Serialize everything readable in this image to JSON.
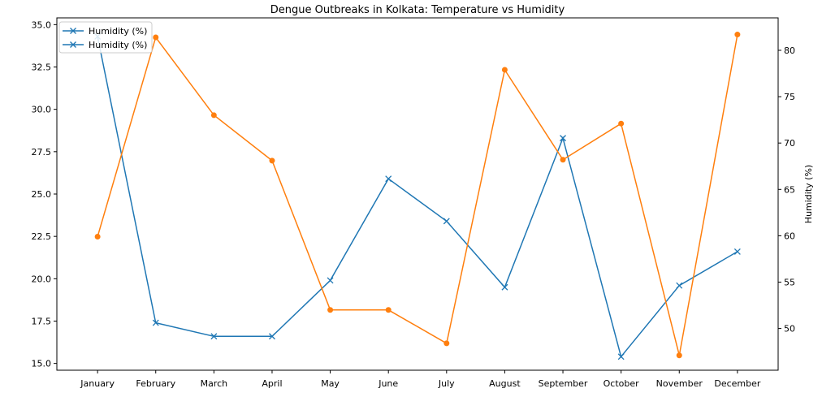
{
  "chart_data": {
    "type": "line",
    "title": "Dengue Outbreaks in Kolkata: Temperature vs Humidity",
    "categories": [
      "January",
      "February",
      "March",
      "April",
      "May",
      "June",
      "July",
      "August",
      "September",
      "October",
      "November",
      "December"
    ],
    "y_left": {
      "label": "",
      "ticks": [
        "15.0",
        "17.5",
        "20.0",
        "22.5",
        "25.0",
        "27.5",
        "30.0",
        "32.5",
        "35.0"
      ],
      "ylim": [
        14.6,
        35.4
      ]
    },
    "y_right": {
      "label": "Humidity (%)",
      "ticks": [
        "50",
        "55",
        "60",
        "65",
        "70",
        "75",
        "80"
      ],
      "ylim": [
        45.5,
        83.5
      ]
    },
    "series": [
      {
        "name": "Humidity (%)",
        "axis": "left",
        "color": "#1f77b4",
        "marker": "x",
        "values": [
          34.3,
          17.4,
          16.6,
          16.6,
          19.9,
          25.9,
          23.4,
          19.5,
          28.3,
          15.4,
          19.6,
          21.6
        ]
      },
      {
        "name": "",
        "axis": "right",
        "color": "#ff7f0e",
        "marker": "o",
        "values": [
          59.9,
          81.4,
          73.0,
          68.1,
          52.0,
          52.0,
          48.4,
          77.9,
          68.2,
          72.1,
          47.1,
          81.7
        ]
      }
    ],
    "legend": {
      "position": "top-left",
      "entries": [
        "Humidity (%)",
        "Humidity (%)"
      ],
      "color": "#1f77b4"
    },
    "grid": false
  }
}
